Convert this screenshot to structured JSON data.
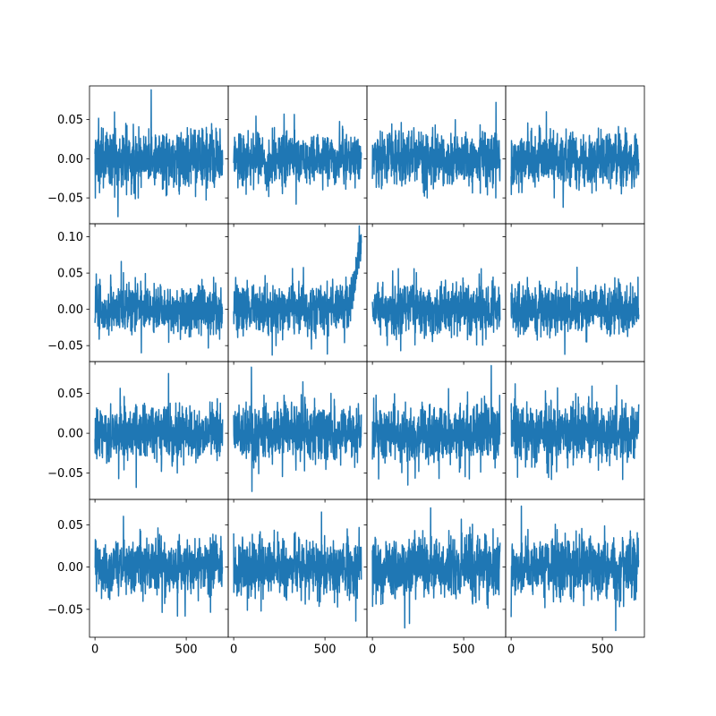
{
  "chart_data": {
    "type": "line",
    "layout": {
      "rows": 4,
      "cols": 4,
      "sharex": true,
      "sharey_by_row": true
    },
    "xlim": [
      -30,
      730
    ],
    "x_ticks": [
      0,
      500
    ],
    "x_tick_labels": [
      "0",
      "500"
    ],
    "n_points": 700,
    "series_color": "#1f77b4",
    "rows": [
      {
        "ylim": [
          -0.083,
          0.093
        ],
        "y_ticks": [
          -0.05,
          0.0,
          0.05
        ],
        "y_tick_labels": [
          "−0.05",
          "0.00",
          "0.05"
        ]
      },
      {
        "ylim": [
          -0.072,
          0.118
        ],
        "y_ticks": [
          -0.05,
          0.0,
          0.05,
          0.1
        ],
        "y_tick_labels": [
          "−0.05",
          "0.00",
          "0.05",
          "0.10"
        ]
      },
      {
        "ylim": [
          -0.083,
          0.09
        ],
        "y_ticks": [
          -0.05,
          0.0,
          0.05
        ],
        "y_tick_labels": [
          "−0.05",
          "0.00",
          "0.05"
        ]
      },
      {
        "ylim": [
          -0.083,
          0.08
        ],
        "y_ticks": [
          -0.05,
          0.0,
          0.05
        ],
        "y_tick_labels": [
          "−0.05",
          "0.00",
          "0.05"
        ]
      }
    ],
    "panels": [
      {
        "row": 0,
        "col": 0,
        "noise_std": 0.022,
        "max": 0.088,
        "min": -0.074,
        "trend_start": null,
        "trend_end_value": null
      },
      {
        "row": 0,
        "col": 1,
        "noise_std": 0.019,
        "max": 0.057,
        "min": -0.058,
        "trend_start": null,
        "trend_end_value": null
      },
      {
        "row": 0,
        "col": 2,
        "noise_std": 0.019,
        "max": 0.072,
        "min": -0.05,
        "trend_start": null,
        "trend_end_value": null
      },
      {
        "row": 0,
        "col": 3,
        "noise_std": 0.019,
        "max": 0.06,
        "min": -0.062,
        "trend_start": null,
        "trend_end_value": null
      },
      {
        "row": 1,
        "col": 0,
        "noise_std": 0.019,
        "max": 0.066,
        "min": -0.06,
        "trend_start": null,
        "trend_end_value": null
      },
      {
        "row": 1,
        "col": 1,
        "noise_std": 0.019,
        "max": 0.115,
        "min": -0.063,
        "trend_start": 630,
        "trend_end_value": 0.09
      },
      {
        "row": 1,
        "col": 2,
        "noise_std": 0.019,
        "max": 0.056,
        "min": -0.057,
        "trend_start": null,
        "trend_end_value": null
      },
      {
        "row": 1,
        "col": 3,
        "noise_std": 0.019,
        "max": 0.058,
        "min": -0.062,
        "trend_start": null,
        "trend_end_value": null
      },
      {
        "row": 2,
        "col": 0,
        "noise_std": 0.02,
        "max": 0.075,
        "min": -0.068,
        "trend_start": null,
        "trend_end_value": null
      },
      {
        "row": 2,
        "col": 1,
        "noise_std": 0.02,
        "max": 0.083,
        "min": -0.073,
        "trend_start": null,
        "trend_end_value": null
      },
      {
        "row": 2,
        "col": 2,
        "noise_std": 0.02,
        "max": 0.085,
        "min": -0.065,
        "trend_start": null,
        "trend_end_value": null
      },
      {
        "row": 2,
        "col": 3,
        "noise_std": 0.02,
        "max": 0.062,
        "min": -0.058,
        "trend_start": null,
        "trend_end_value": null
      },
      {
        "row": 3,
        "col": 0,
        "noise_std": 0.018,
        "max": 0.06,
        "min": -0.058,
        "trend_start": null,
        "trend_end_value": null
      },
      {
        "row": 3,
        "col": 1,
        "noise_std": 0.019,
        "max": 0.065,
        "min": -0.064,
        "trend_start": null,
        "trend_end_value": null
      },
      {
        "row": 3,
        "col": 2,
        "noise_std": 0.02,
        "max": 0.07,
        "min": -0.072,
        "trend_start": null,
        "trend_end_value": null
      },
      {
        "row": 3,
        "col": 3,
        "noise_std": 0.02,
        "max": 0.072,
        "min": -0.075,
        "trend_start": null,
        "trend_end_value": null
      }
    ]
  }
}
